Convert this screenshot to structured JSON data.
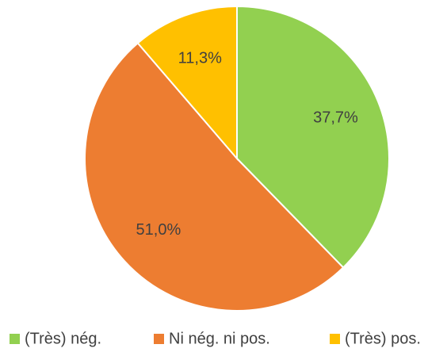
{
  "chart_data": {
    "type": "pie",
    "categories": [
      "(Très) nég.",
      "Ni nég. ni pos.",
      "(Très) pos."
    ],
    "values": [
      37.7,
      51.0,
      11.3
    ],
    "value_labels": [
      "37,7%",
      "51,0%",
      "11,3%"
    ],
    "colors": [
      "#92d050",
      "#ed7d31",
      "#ffc000"
    ],
    "legend": "bottom"
  }
}
